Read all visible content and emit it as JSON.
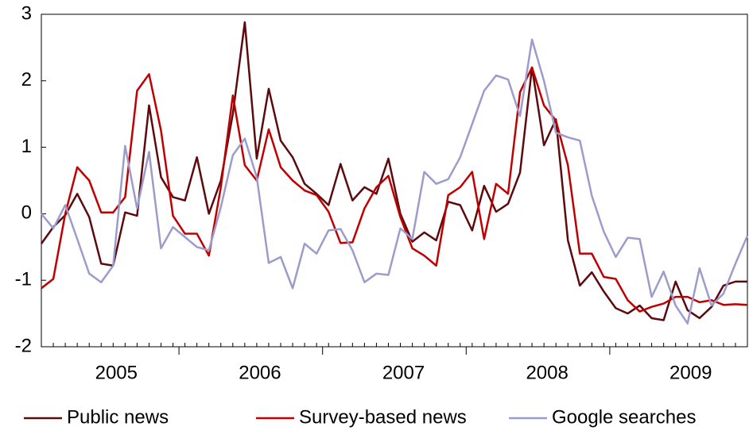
{
  "chart_data": {
    "type": "line",
    "categories": [
      null,
      null,
      null,
      null,
      null,
      null,
      "2005",
      null,
      null,
      null,
      null,
      null,
      null,
      null,
      null,
      null,
      null,
      null,
      "2006",
      null,
      null,
      null,
      null,
      null,
      null,
      null,
      null,
      null,
      null,
      null,
      "2007",
      null,
      null,
      null,
      null,
      null,
      null,
      null,
      null,
      null,
      null,
      null,
      "2008",
      null,
      null,
      null,
      null,
      null,
      null,
      null,
      null,
      null,
      null,
      null,
      "2009",
      null,
      null,
      null,
      null,
      null
    ],
    "ylim": [
      -2,
      3
    ],
    "yticks": [
      -2,
      -1,
      0,
      1,
      2,
      3
    ],
    "series": [
      {
        "name": "Public news",
        "color": "#5c0a0e",
        "values": [
          -0.45,
          -0.2,
          -0.02,
          0.3,
          -0.05,
          -0.75,
          -0.78,
          0.02,
          -0.03,
          1.63,
          0.55,
          0.25,
          0.2,
          0.85,
          0.0,
          0.5,
          1.5,
          2.88,
          0.83,
          1.88,
          1.1,
          0.85,
          0.45,
          0.3,
          0.13,
          0.75,
          0.2,
          0.4,
          0.3,
          0.83,
          0.0,
          -0.42,
          -0.28,
          -0.4,
          0.18,
          0.13,
          -0.25,
          0.42,
          0.03,
          0.15,
          0.62,
          2.2,
          1.03,
          1.42,
          -0.4,
          -1.08,
          -0.88,
          -1.17,
          -1.42,
          -1.5,
          -1.38,
          -1.57,
          -1.6,
          -1.02,
          -1.45,
          -1.57,
          -1.4,
          -1.08,
          -1.02,
          -1.02
        ]
      },
      {
        "name": "Survey-based news",
        "color": "#c00000",
        "values": [
          -1.12,
          -0.98,
          0.0,
          0.7,
          0.5,
          0.02,
          0.02,
          0.25,
          1.85,
          2.1,
          1.25,
          -0.03,
          -0.3,
          -0.3,
          -0.63,
          0.4,
          1.78,
          0.73,
          0.5,
          1.27,
          0.7,
          0.5,
          0.35,
          0.28,
          0.03,
          -0.44,
          -0.43,
          0.08,
          0.4,
          0.57,
          -0.05,
          -0.52,
          -0.63,
          -0.78,
          0.28,
          0.4,
          0.63,
          -0.38,
          0.45,
          0.3,
          1.83,
          2.2,
          1.63,
          1.4,
          0.73,
          -0.6,
          -0.6,
          -0.95,
          -0.98,
          -1.3,
          -1.47,
          -1.4,
          -1.35,
          -1.25,
          -1.25,
          -1.33,
          -1.3,
          -1.37,
          -1.36,
          -1.37
        ]
      },
      {
        "name": "Google searches",
        "color": "#9c9ccc",
        "values": [
          0.0,
          -0.22,
          0.13,
          -0.38,
          -0.9,
          -1.03,
          -0.78,
          1.02,
          0.08,
          0.93,
          -0.52,
          -0.2,
          -0.35,
          -0.5,
          -0.55,
          0.1,
          0.88,
          1.13,
          0.55,
          -0.74,
          -0.65,
          -1.12,
          -0.45,
          -0.6,
          -0.25,
          -0.23,
          -0.55,
          -1.03,
          -0.9,
          -0.92,
          -0.22,
          -0.38,
          0.63,
          0.45,
          0.52,
          0.85,
          1.35,
          1.85,
          2.08,
          2.02,
          1.47,
          2.62,
          2.0,
          1.22,
          1.15,
          1.1,
          0.27,
          -0.27,
          -0.65,
          -0.36,
          -0.38,
          -1.25,
          -0.87,
          -1.38,
          -1.65,
          -0.82,
          -1.38,
          -1.2,
          -0.75,
          -0.33
        ]
      }
    ]
  }
}
